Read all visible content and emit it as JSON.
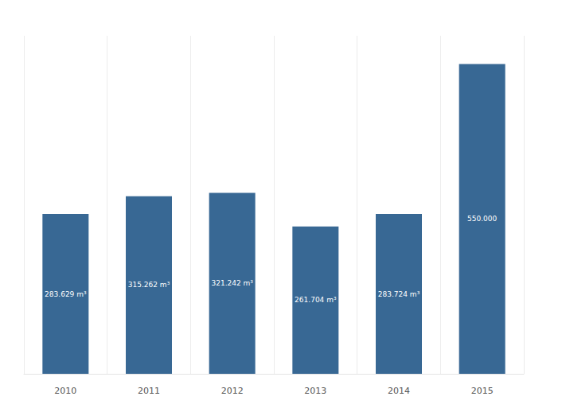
{
  "chart_data": {
    "type": "bar",
    "categories": [
      "2010",
      "2011",
      "2012",
      "2013",
      "2014",
      "2015"
    ],
    "values": [
      283629,
      315262,
      321242,
      261704,
      283724,
      550000
    ],
    "value_labels": [
      "283.629 m³",
      "315.262 m³",
      "321.242 m³",
      "261.704 m³",
      "283.724 m³",
      "550.000"
    ],
    "color": "#386894",
    "ylim": [
      0,
      600000
    ],
    "grid": true,
    "data_labels": true,
    "tick_labels": "x"
  }
}
